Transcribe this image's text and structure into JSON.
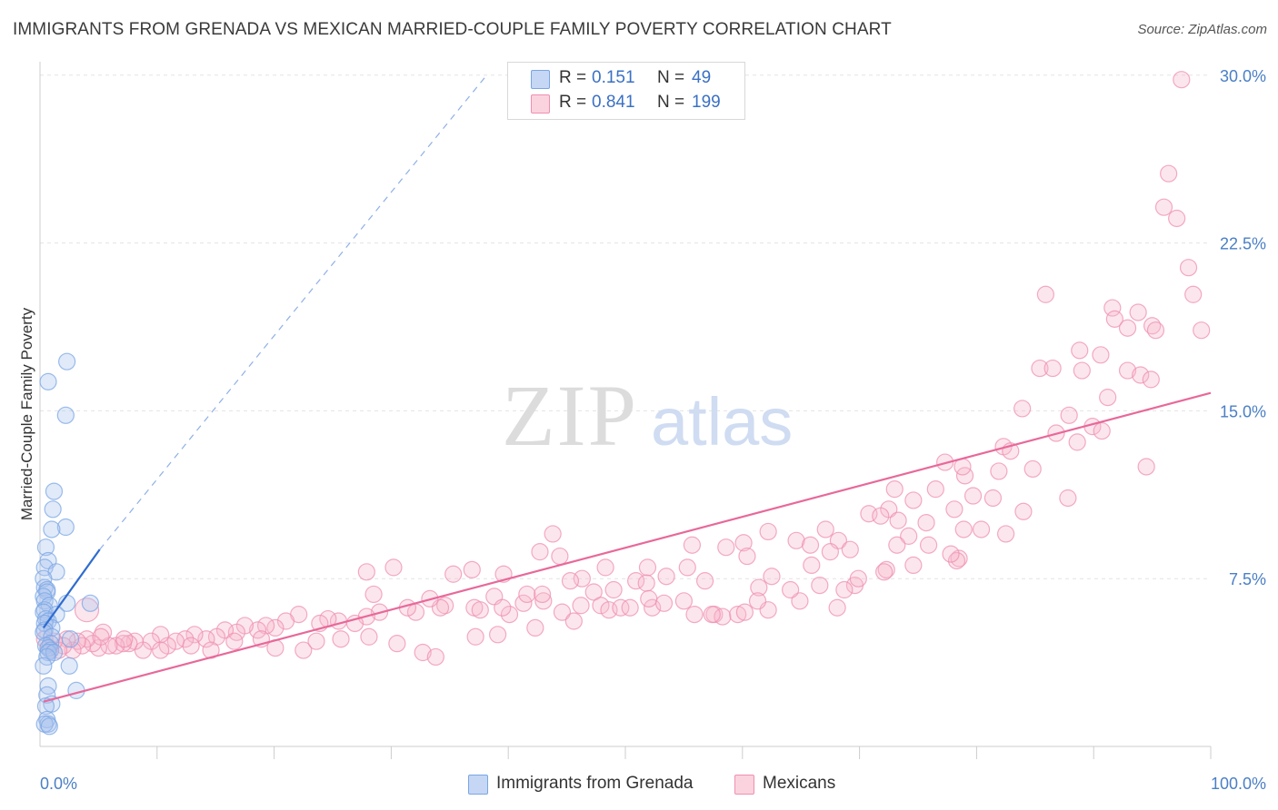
{
  "header": {
    "title": "IMMIGRANTS FROM GRENADA VS MEXICAN MARRIED-COUPLE FAMILY POVERTY CORRELATION CHART",
    "source": "Source: ZipAtlas.com"
  },
  "watermark": {
    "zip": "ZIP",
    "atlas": "atlas"
  },
  "legend_top": [
    {
      "r_label": "R =",
      "r_value": "0.151",
      "n_label": "N =",
      "n_value": "49",
      "color": "#aac4ee"
    },
    {
      "r_label": "R =",
      "r_value": "0.841",
      "n_label": "N =",
      "n_value": "199",
      "color": "#f6b8cc"
    }
  ],
  "legend_bottom": [
    {
      "label": "Immigrants from Grenada",
      "color": "#aac4ee"
    },
    {
      "label": "Mexicans",
      "color": "#f6b8cc"
    }
  ],
  "chart_data": {
    "type": "scatter",
    "ylabel": "Married-Couple Family Poverty",
    "xlim": [
      0,
      100
    ],
    "ylim": [
      0,
      30.6
    ],
    "x_tick_labels": [
      "0.0%",
      "100.0%"
    ],
    "y_ticks": [
      7.5,
      15.0,
      22.5,
      30.0
    ],
    "y_tick_labels": [
      "7.5%",
      "15.0%",
      "22.5%",
      "30.0%"
    ],
    "grid": true,
    "colors": {
      "blue": "#7aa5e4",
      "pink": "#ef8fb0",
      "blue_line": "#2f6cd0",
      "pink_line": "#e8689a"
    },
    "series": [
      {
        "name": "Immigrants from Grenada",
        "color": "#7aa5e4",
        "trend": {
          "x": [
            0.3,
            5.1
          ],
          "y": [
            5.3,
            8.8
          ],
          "extended_to": [
            38.0,
            29.9
          ]
        },
        "points": [
          [
            2.3,
            17.2
          ],
          [
            0.7,
            16.3
          ],
          [
            2.2,
            14.8
          ],
          [
            1.2,
            11.4
          ],
          [
            1.1,
            10.6
          ],
          [
            2.2,
            9.8
          ],
          [
            1.0,
            9.7
          ],
          [
            0.5,
            8.9
          ],
          [
            0.7,
            8.3
          ],
          [
            0.4,
            8.0
          ],
          [
            1.4,
            7.8
          ],
          [
            0.3,
            7.5
          ],
          [
            0.4,
            7.1
          ],
          [
            0.6,
            7.0
          ],
          [
            0.6,
            6.9
          ],
          [
            0.3,
            6.7
          ],
          [
            0.4,
            6.5
          ],
          [
            2.3,
            6.4
          ],
          [
            4.3,
            6.4
          ],
          [
            0.8,
            6.3
          ],
          [
            0.4,
            6.1
          ],
          [
            0.3,
            6.0
          ],
          [
            1.4,
            5.9
          ],
          [
            0.5,
            5.7
          ],
          [
            0.7,
            5.6
          ],
          [
            0.4,
            5.5
          ],
          [
            1.0,
            5.3
          ],
          [
            0.4,
            5.2
          ],
          [
            0.3,
            5.1
          ],
          [
            1.0,
            4.9
          ],
          [
            2.6,
            4.8
          ],
          [
            0.9,
            4.6
          ],
          [
            0.5,
            4.5
          ],
          [
            0.7,
            4.4
          ],
          [
            0.9,
            4.3
          ],
          [
            0.7,
            4.2
          ],
          [
            1.2,
            4.2
          ],
          [
            0.6,
            4.0
          ],
          [
            0.3,
            3.6
          ],
          [
            2.5,
            3.6
          ],
          [
            0.7,
            2.7
          ],
          [
            3.1,
            2.5
          ],
          [
            0.6,
            2.3
          ],
          [
            1.0,
            1.9
          ],
          [
            0.5,
            1.8
          ],
          [
            0.6,
            1.2
          ],
          [
            0.7,
            1.0
          ],
          [
            0.4,
            1.0
          ],
          [
            0.8,
            0.9
          ]
        ]
      },
      {
        "name": "Mexicans",
        "color": "#ef8fb0",
        "trend": {
          "x": [
            0.3,
            100.0
          ],
          "y": [
            2.0,
            15.8
          ]
        },
        "points": [
          [
            97.5,
            29.8
          ],
          [
            96.4,
            25.6
          ],
          [
            96.0,
            24.1
          ],
          [
            97.1,
            23.6
          ],
          [
            98.1,
            21.4
          ],
          [
            98.5,
            20.2
          ],
          [
            99.2,
            18.6
          ],
          [
            85.9,
            20.2
          ],
          [
            91.6,
            19.6
          ],
          [
            93.8,
            19.4
          ],
          [
            91.8,
            19.1
          ],
          [
            92.9,
            18.7
          ],
          [
            95.0,
            18.8
          ],
          [
            95.3,
            18.6
          ],
          [
            88.8,
            17.7
          ],
          [
            90.6,
            17.5
          ],
          [
            92.9,
            16.8
          ],
          [
            94.0,
            16.6
          ],
          [
            94.9,
            16.4
          ],
          [
            89.0,
            16.8
          ],
          [
            85.4,
            16.9
          ],
          [
            86.5,
            16.9
          ],
          [
            91.2,
            15.6
          ],
          [
            83.9,
            15.1
          ],
          [
            87.9,
            14.8
          ],
          [
            89.9,
            14.3
          ],
          [
            90.7,
            14.1
          ],
          [
            86.8,
            14.0
          ],
          [
            88.6,
            13.6
          ],
          [
            82.3,
            13.4
          ],
          [
            82.9,
            13.2
          ],
          [
            84.8,
            12.4
          ],
          [
            81.9,
            12.3
          ],
          [
            94.5,
            12.5
          ],
          [
            77.3,
            12.7
          ],
          [
            79.0,
            12.1
          ],
          [
            78.8,
            12.5
          ],
          [
            76.5,
            11.5
          ],
          [
            73.0,
            11.5
          ],
          [
            79.7,
            11.2
          ],
          [
            81.4,
            11.1
          ],
          [
            87.8,
            11.1
          ],
          [
            74.6,
            11.0
          ],
          [
            78.1,
            10.6
          ],
          [
            72.5,
            10.6
          ],
          [
            70.8,
            10.4
          ],
          [
            71.8,
            10.3
          ],
          [
            73.3,
            10.1
          ],
          [
            75.7,
            10.0
          ],
          [
            84.0,
            10.5
          ],
          [
            78.9,
            9.7
          ],
          [
            80.4,
            9.7
          ],
          [
            82.5,
            9.5
          ],
          [
            74.2,
            9.4
          ],
          [
            73.2,
            9.0
          ],
          [
            67.1,
            9.7
          ],
          [
            62.2,
            9.6
          ],
          [
            64.6,
            9.2
          ],
          [
            65.8,
            9.0
          ],
          [
            60.1,
            9.1
          ],
          [
            68.2,
            9.2
          ],
          [
            75.9,
            9.0
          ],
          [
            69.2,
            8.8
          ],
          [
            67.5,
            8.7
          ],
          [
            58.6,
            8.9
          ],
          [
            55.7,
            9.0
          ],
          [
            60.4,
            8.5
          ],
          [
            65.9,
            8.1
          ],
          [
            72.3,
            7.9
          ],
          [
            78.5,
            8.4
          ],
          [
            78.3,
            8.3
          ],
          [
            62.5,
            7.6
          ],
          [
            55.3,
            8.0
          ],
          [
            51.9,
            8.0
          ],
          [
            56.8,
            7.4
          ],
          [
            50.9,
            7.4
          ],
          [
            51.8,
            7.3
          ],
          [
            53.5,
            7.6
          ],
          [
            61.4,
            7.1
          ],
          [
            69.6,
            7.2
          ],
          [
            68.7,
            7.0
          ],
          [
            48.3,
            8.0
          ],
          [
            44.4,
            8.5
          ],
          [
            42.7,
            8.7
          ],
          [
            43.8,
            9.5
          ],
          [
            36.9,
            7.9
          ],
          [
            46.3,
            7.5
          ],
          [
            45.3,
            7.4
          ],
          [
            47.3,
            6.9
          ],
          [
            49.0,
            7.0
          ],
          [
            39.6,
            7.7
          ],
          [
            35.3,
            7.7
          ],
          [
            30.2,
            8.0
          ],
          [
            27.9,
            7.8
          ],
          [
            28.5,
            6.8
          ],
          [
            34.6,
            6.3
          ],
          [
            37.1,
            6.2
          ],
          [
            38.8,
            6.7
          ],
          [
            41.3,
            6.4
          ],
          [
            40.1,
            5.9
          ],
          [
            44.6,
            6.0
          ],
          [
            47.9,
            6.3
          ],
          [
            52.3,
            6.2
          ],
          [
            55.9,
            5.9
          ],
          [
            57.6,
            5.9
          ],
          [
            58.3,
            5.8
          ],
          [
            59.6,
            5.9
          ],
          [
            62.2,
            6.1
          ],
          [
            64.9,
            6.5
          ],
          [
            68.1,
            6.2
          ],
          [
            55.0,
            6.5
          ],
          [
            60.2,
            6.0
          ],
          [
            52.0,
            6.6
          ],
          [
            48.6,
            6.1
          ],
          [
            49.6,
            6.2
          ],
          [
            46.2,
            6.3
          ],
          [
            43.0,
            6.5
          ],
          [
            42.9,
            6.8
          ],
          [
            41.6,
            6.8
          ],
          [
            39.5,
            6.2
          ],
          [
            37.6,
            6.1
          ],
          [
            34.2,
            6.2
          ],
          [
            33.3,
            6.6
          ],
          [
            32.1,
            6.0
          ],
          [
            31.4,
            6.2
          ],
          [
            29.0,
            6.0
          ],
          [
            27.9,
            5.8
          ],
          [
            26.9,
            5.5
          ],
          [
            25.5,
            5.6
          ],
          [
            24.6,
            5.7
          ],
          [
            23.9,
            5.5
          ],
          [
            22.1,
            5.9
          ],
          [
            21.0,
            5.6
          ],
          [
            20.1,
            5.3
          ],
          [
            19.3,
            5.4
          ],
          [
            18.6,
            5.2
          ],
          [
            17.5,
            5.4
          ],
          [
            16.8,
            5.1
          ],
          [
            15.8,
            5.2
          ],
          [
            15.1,
            4.9
          ],
          [
            14.2,
            4.8
          ],
          [
            13.2,
            5.0
          ],
          [
            12.4,
            4.8
          ],
          [
            11.6,
            4.7
          ],
          [
            10.9,
            4.5
          ],
          [
            10.3,
            5.0
          ],
          [
            9.5,
            4.7
          ],
          [
            8.8,
            4.3
          ],
          [
            8.1,
            4.7
          ],
          [
            7.6,
            4.6
          ],
          [
            7.1,
            4.6
          ],
          [
            6.5,
            4.5
          ],
          [
            5.9,
            4.5
          ],
          [
            5.4,
            5.1
          ],
          [
            5.0,
            4.4
          ],
          [
            4.5,
            4.6
          ],
          [
            4.0,
            4.8
          ],
          [
            3.6,
            4.5
          ],
          [
            3.2,
            4.7
          ],
          [
            2.8,
            4.3
          ],
          [
            2.3,
            4.8
          ],
          [
            2.0,
            4.5
          ],
          [
            1.6,
            4.3
          ],
          [
            1.2,
            4.7
          ],
          [
            0.8,
            4.4
          ],
          [
            0.4,
            4.8
          ],
          [
            4.0,
            6.1
          ],
          [
            5.2,
            4.9
          ],
          [
            7.2,
            4.8
          ],
          [
            10.3,
            4.3
          ],
          [
            12.9,
            4.5
          ],
          [
            14.6,
            4.3
          ],
          [
            16.6,
            4.7
          ],
          [
            18.9,
            4.8
          ],
          [
            20.1,
            4.4
          ],
          [
            22.5,
            4.3
          ],
          [
            23.6,
            4.7
          ],
          [
            25.7,
            4.8
          ],
          [
            28.1,
            4.9
          ],
          [
            30.5,
            4.6
          ],
          [
            32.7,
            4.2
          ],
          [
            33.8,
            4.0
          ],
          [
            37.2,
            4.9
          ],
          [
            39.1,
            5.0
          ],
          [
            42.3,
            5.3
          ],
          [
            45.6,
            5.6
          ],
          [
            50.4,
            6.2
          ],
          [
            53.3,
            6.4
          ],
          [
            57.4,
            5.9
          ],
          [
            61.3,
            6.5
          ],
          [
            64.1,
            7.0
          ],
          [
            66.6,
            7.2
          ],
          [
            69.9,
            7.5
          ],
          [
            72.1,
            7.8
          ],
          [
            74.6,
            8.1
          ],
          [
            77.8,
            8.6
          ]
        ]
      }
    ]
  }
}
